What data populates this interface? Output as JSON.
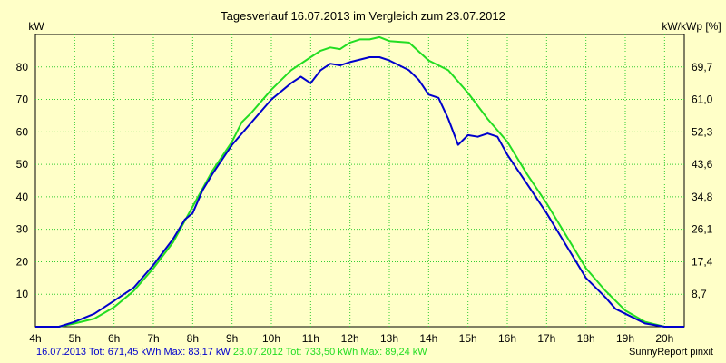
{
  "chart_data": {
    "type": "line",
    "title": "Tagesverlauf 16.07.2013 im Vergleich zum 23.07.2012",
    "ylabel_left": "kW",
    "ylabel_right": "kW/kWp [%]",
    "xlim": [
      4,
      20.5
    ],
    "ylim": [
      0,
      90
    ],
    "grid": true,
    "x_ticks": [
      4,
      5,
      6,
      7,
      8,
      9,
      10,
      11,
      12,
      13,
      14,
      15,
      16,
      17,
      18,
      19,
      20
    ],
    "x_tick_labels": [
      "4h",
      "5h",
      "6h",
      "7h",
      "8h",
      "9h",
      "10h",
      "11h",
      "12h",
      "13h",
      "14h",
      "15h",
      "16h",
      "17h",
      "18h",
      "19h",
      "20h"
    ],
    "y_ticks_left": [
      10,
      20,
      30,
      40,
      50,
      60,
      70,
      80
    ],
    "y_tick_labels_left": [
      "10",
      "20",
      "30",
      "40",
      "50",
      "60",
      "70",
      "80"
    ],
    "y_ticks_right": [
      8.7,
      17.4,
      26.1,
      34.8,
      43.6,
      52.3,
      61.0,
      69.7
    ],
    "y_tick_labels_right": [
      "8,7",
      "17,4",
      "26,1",
      "34,8",
      "43,6",
      "52,3",
      "61,0",
      "69,7"
    ],
    "series": [
      {
        "name": "16.07.2013",
        "color": "#0000cc",
        "legend": "16.07.2013 Tot: 671,45 kWh Max: 83,17 kW",
        "points": [
          [
            4.0,
            0
          ],
          [
            4.6,
            0
          ],
          [
            5.0,
            1.5
          ],
          [
            5.5,
            4
          ],
          [
            6.0,
            8
          ],
          [
            6.5,
            12
          ],
          [
            7.0,
            19
          ],
          [
            7.5,
            27
          ],
          [
            7.8,
            33
          ],
          [
            8.0,
            35
          ],
          [
            8.25,
            42
          ],
          [
            8.5,
            47
          ],
          [
            9.0,
            56
          ],
          [
            9.5,
            63
          ],
          [
            10.0,
            70
          ],
          [
            10.5,
            75
          ],
          [
            10.75,
            77
          ],
          [
            11.0,
            75
          ],
          [
            11.25,
            79
          ],
          [
            11.5,
            81
          ],
          [
            11.75,
            80.5
          ],
          [
            12.0,
            81.5
          ],
          [
            12.5,
            83
          ],
          [
            12.75,
            83
          ],
          [
            13.0,
            82
          ],
          [
            13.5,
            79
          ],
          [
            13.75,
            76
          ],
          [
            14.0,
            71.5
          ],
          [
            14.25,
            70.5
          ],
          [
            14.5,
            64
          ],
          [
            14.75,
            56
          ],
          [
            15.0,
            59
          ],
          [
            15.25,
            58.5
          ],
          [
            15.5,
            59.5
          ],
          [
            15.75,
            58.5
          ],
          [
            16.0,
            53
          ],
          [
            16.5,
            44
          ],
          [
            17.0,
            35
          ],
          [
            17.5,
            25
          ],
          [
            18.0,
            15
          ],
          [
            18.5,
            9
          ],
          [
            18.75,
            5.5
          ],
          [
            19.0,
            4
          ],
          [
            19.5,
            1
          ],
          [
            20.0,
            0
          ],
          [
            20.5,
            0
          ]
        ]
      },
      {
        "name": "23.07.2012",
        "color": "#22dd22",
        "legend": "23.07.2012 Tot: 733,50 kWh Max: 89,24 kW",
        "points": [
          [
            4.0,
            0
          ],
          [
            4.6,
            0
          ],
          [
            5.0,
            1
          ],
          [
            5.5,
            2.5
          ],
          [
            6.0,
            6
          ],
          [
            6.5,
            11
          ],
          [
            7.0,
            18
          ],
          [
            7.5,
            26
          ],
          [
            8.0,
            37
          ],
          [
            8.5,
            48
          ],
          [
            9.0,
            57
          ],
          [
            9.25,
            63
          ],
          [
            9.5,
            66
          ],
          [
            10.0,
            73
          ],
          [
            10.5,
            79
          ],
          [
            11.0,
            83
          ],
          [
            11.25,
            85
          ],
          [
            11.5,
            86
          ],
          [
            11.75,
            85.5
          ],
          [
            12.0,
            87.5
          ],
          [
            12.25,
            88.5
          ],
          [
            12.5,
            88.5
          ],
          [
            12.75,
            89.2
          ],
          [
            13.0,
            88
          ],
          [
            13.5,
            87.5
          ],
          [
            14.0,
            82
          ],
          [
            14.5,
            79
          ],
          [
            15.0,
            72
          ],
          [
            15.5,
            64
          ],
          [
            16.0,
            57
          ],
          [
            16.5,
            47
          ],
          [
            17.0,
            38
          ],
          [
            17.5,
            28
          ],
          [
            18.0,
            18
          ],
          [
            18.5,
            11
          ],
          [
            19.0,
            5
          ],
          [
            19.5,
            1.5
          ],
          [
            20.0,
            0
          ],
          [
            20.5,
            0
          ]
        ]
      }
    ],
    "credit": "SunnyReport pinxit"
  }
}
